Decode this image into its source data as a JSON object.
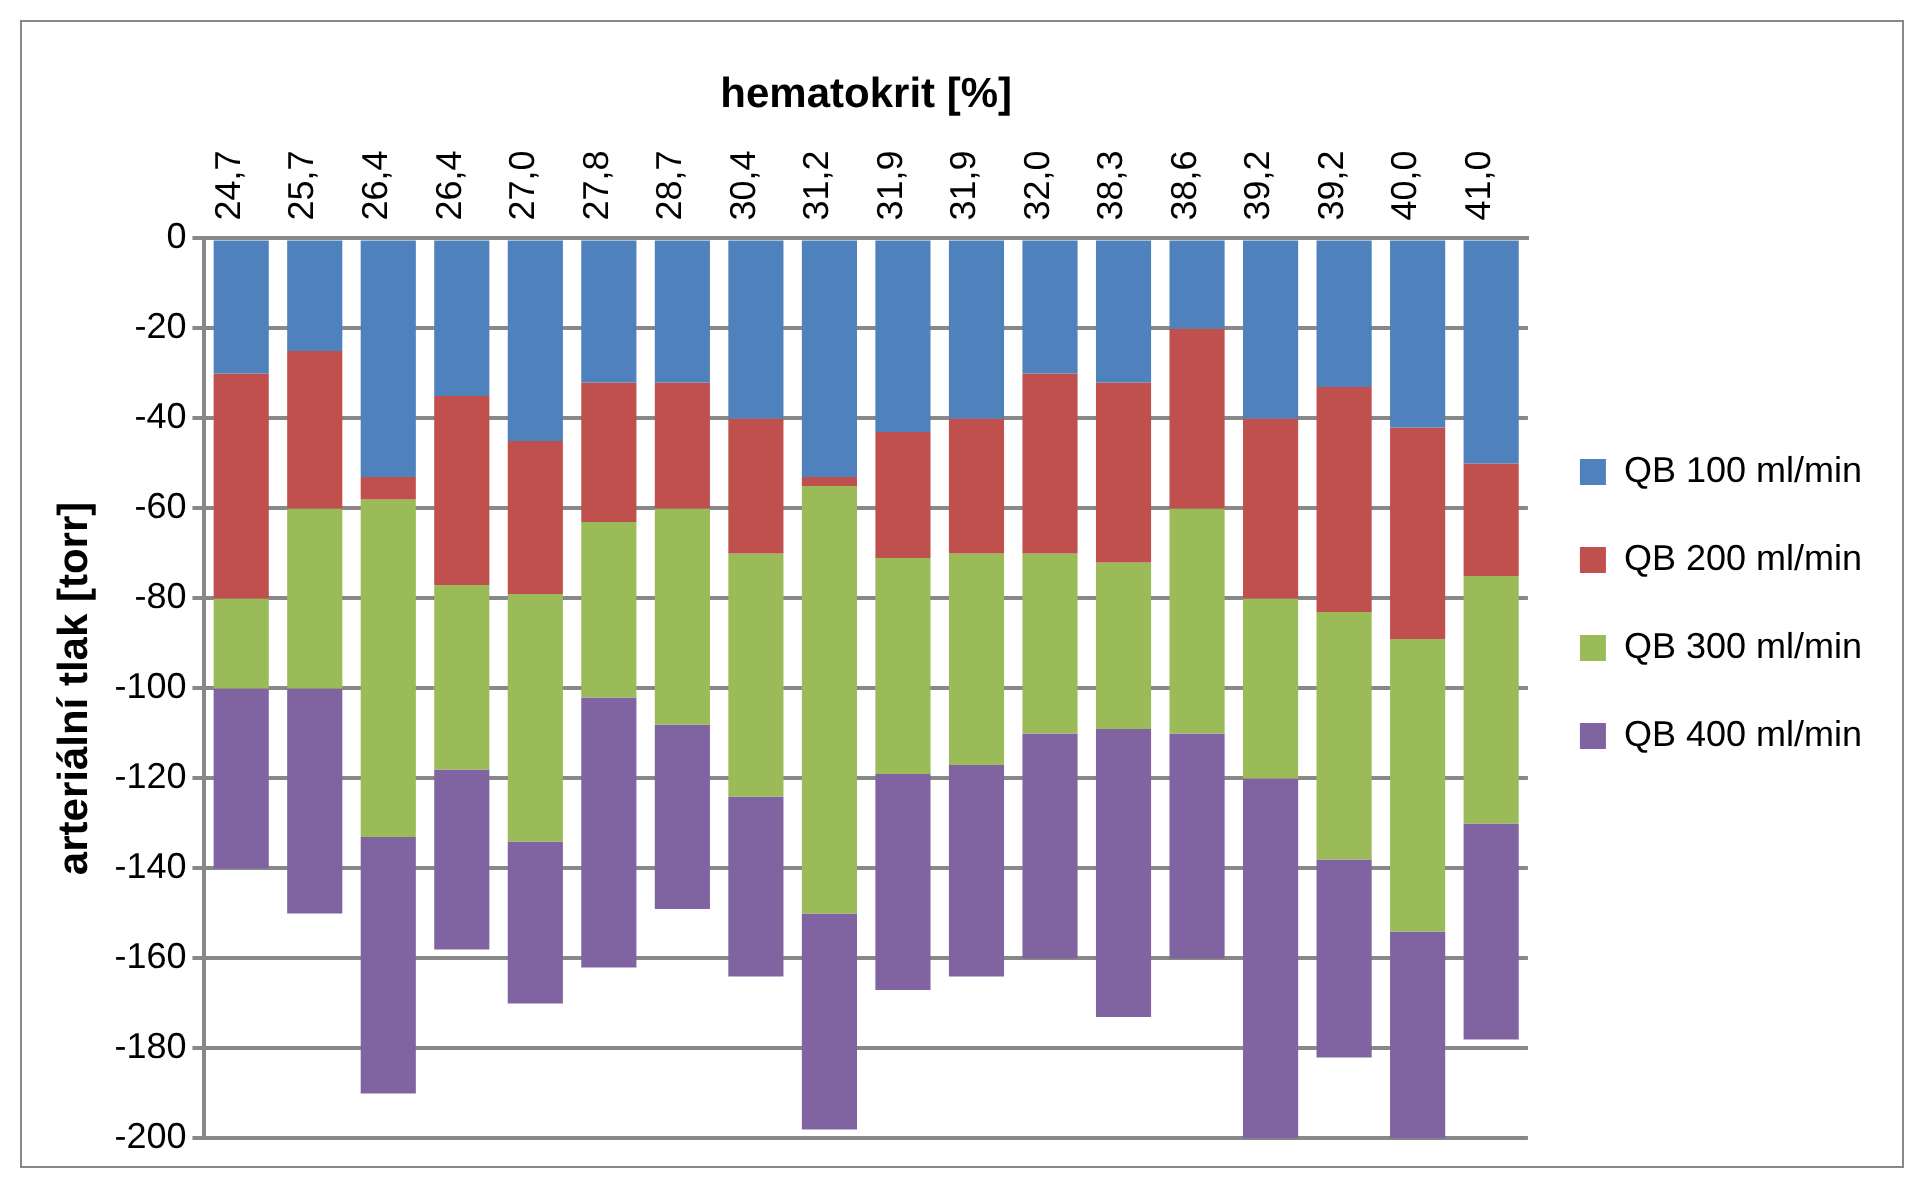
{
  "chart_data": {
    "type": "bar",
    "stacked": true,
    "xlabel": "hematokrit [%]",
    "ylabel": "arteriální tlak [torr]",
    "categories": [
      "24,7",
      "25,7",
      "26,4",
      "26,4",
      "27,0",
      "27,8",
      "28,7",
      "30,4",
      "31,2",
      "31,9",
      "31,9",
      "32,0",
      "38,3",
      "38,6",
      "39,2",
      "39,2",
      "40,0",
      "41,0"
    ],
    "series": [
      {
        "name": "QB 100 ml/min",
        "color": "#4f81bd",
        "values": [
          -30,
          -25,
          -53,
          -35,
          -45,
          -32,
          -32,
          -40,
          -53,
          -43,
          -40,
          -30,
          -32,
          -20,
          -40,
          -33,
          -42,
          -50
        ]
      },
      {
        "name": "QB 200 ml/min",
        "color": "#c0504d",
        "values": [
          -50,
          -35,
          -5,
          -42,
          -34,
          -31,
          -28,
          -30,
          -2,
          -28,
          -30,
          -40,
          -40,
          -40,
          -40,
          -50,
          -47,
          -25
        ]
      },
      {
        "name": "QB 300 ml/min",
        "color": "#9bbb59",
        "values": [
          -20,
          -40,
          -75,
          -41,
          -55,
          -39,
          -48,
          -54,
          -95,
          -48,
          -47,
          -40,
          -37,
          -50,
          -40,
          -55,
          -65,
          -55
        ]
      },
      {
        "name": "QB 400 ml/min",
        "color": "#8064a2",
        "values": [
          -40,
          -50,
          -57,
          -40,
          -36,
          -60,
          -41,
          -40,
          -48,
          -48,
          -47,
          -50,
          -64,
          -50,
          -80,
          -44,
          -46,
          -48
        ]
      }
    ],
    "ylim": [
      -200,
      0
    ],
    "yticks": [
      0,
      -20,
      -40,
      -60,
      -80,
      -100,
      -120,
      -140,
      -160,
      -180,
      -200
    ],
    "grid": "y",
    "legend": "right"
  }
}
